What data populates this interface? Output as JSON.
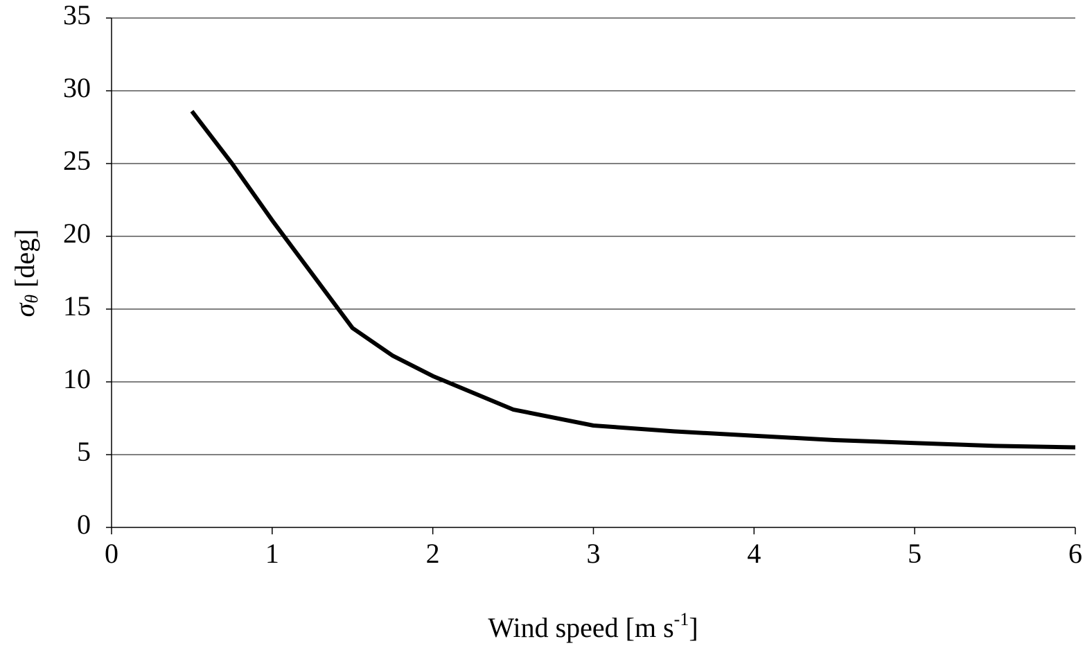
{
  "chart_data": {
    "type": "line",
    "x_label": "Wind speed [m s",
    "x_label_sup": "-1",
    "x_label_end": "]",
    "y_label": "σ",
    "y_label_sub": "θ",
    "y_label_end": " [deg]",
    "x": [
      0.5,
      0.75,
      1.0,
      1.25,
      1.5,
      1.75,
      2.0,
      2.5,
      3.0,
      3.5,
      4.0,
      4.5,
      5.0,
      5.5,
      6.0
    ],
    "series": [
      {
        "color": "#000000",
        "values": [
          28.6,
          25.0,
          21.1,
          17.4,
          13.7,
          11.8,
          10.4,
          8.1,
          7.0,
          6.6,
          6.3,
          6.0,
          5.8,
          5.6,
          5.5
        ]
      }
    ],
    "xlim": [
      0,
      6
    ],
    "xticks": [
      0,
      1,
      2,
      3,
      4,
      5,
      6
    ],
    "ylim": [
      0,
      35
    ],
    "yticks": [
      0,
      5,
      10,
      15,
      20,
      25,
      30,
      35
    ],
    "grid": true
  }
}
